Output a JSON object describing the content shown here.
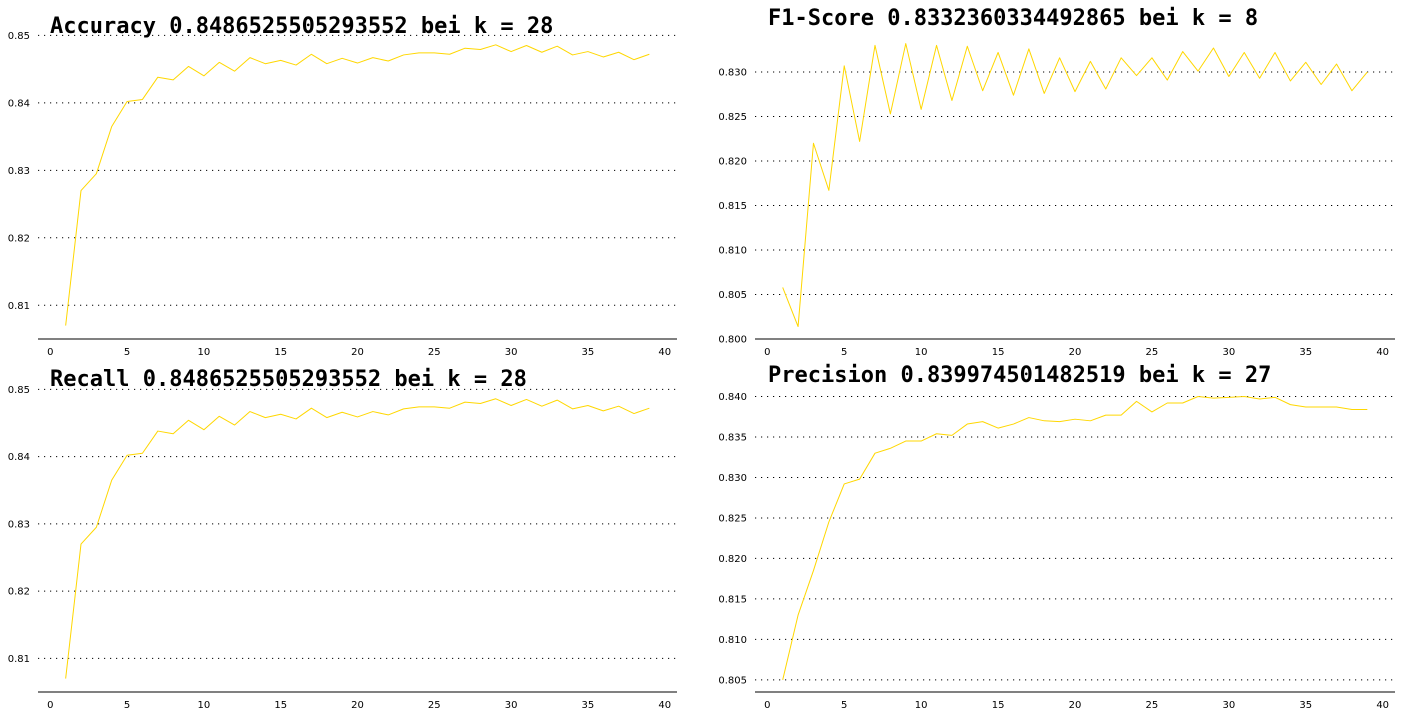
{
  "colors": {
    "line": "#ffd700",
    "text": "#000000",
    "grid": "#000000"
  },
  "chart_data": [
    {
      "type": "line",
      "title": "Accuracy 0.8486525505293552 bei k = 28",
      "grid": "y-dotted",
      "xlim": [
        -0.8,
        40.8
      ],
      "ylim": [
        0.805,
        0.8505
      ],
      "x_ticks": [
        0,
        5,
        10,
        15,
        20,
        25,
        30,
        35,
        40
      ],
      "y_ticks": [
        0.81,
        0.82,
        0.83,
        0.84,
        0.85
      ],
      "y_tick_labels": [
        "0.81",
        "0.82",
        "0.83",
        "0.84",
        "0.85"
      ],
      "series": [
        {
          "x": [
            1,
            2,
            3,
            4,
            5,
            6,
            7,
            8,
            9,
            10,
            11,
            12,
            13,
            14,
            15,
            16,
            17,
            18,
            19,
            20,
            21,
            22,
            23,
            24,
            25,
            26,
            27,
            28,
            29,
            30,
            31,
            32,
            33,
            34,
            35,
            36,
            37,
            38,
            39
          ],
          "values": [
            0.807,
            0.827,
            0.8295,
            0.8365,
            0.8402,
            0.8405,
            0.8438,
            0.8434,
            0.8454,
            0.844,
            0.846,
            0.8447,
            0.8467,
            0.8458,
            0.8463,
            0.8456,
            0.8472,
            0.8458,
            0.8466,
            0.8459,
            0.8467,
            0.8462,
            0.8471,
            0.8474,
            0.8474,
            0.8472,
            0.8481,
            0.8479,
            0.8486,
            0.8476,
            0.8485,
            0.8475,
            0.8484,
            0.8471,
            0.8476,
            0.8468,
            0.8475,
            0.8464,
            0.8472
          ]
        }
      ]
    },
    {
      "type": "line",
      "title": "F1-Score 0.8332360334492865 bei k = 8",
      "grid": "y-dotted",
      "xlim": [
        -0.8,
        40.8
      ],
      "ylim": [
        0.8,
        0.8345
      ],
      "x_ticks": [
        0,
        5,
        10,
        15,
        20,
        25,
        30,
        35,
        40
      ],
      "y_ticks": [
        0.8,
        0.805,
        0.81,
        0.815,
        0.82,
        0.825,
        0.83
      ],
      "y_tick_labels": [
        "0.800",
        "0.805",
        "0.810",
        "0.815",
        "0.820",
        "0.825",
        "0.830"
      ],
      "series": [
        {
          "x": [
            1,
            2,
            3,
            4,
            5,
            6,
            7,
            8,
            9,
            10,
            11,
            12,
            13,
            14,
            15,
            16,
            17,
            18,
            19,
            20,
            21,
            22,
            23,
            24,
            25,
            26,
            27,
            28,
            29,
            30,
            31,
            32,
            33,
            34,
            35,
            36,
            37,
            38,
            39
          ],
          "values": [
            0.8058,
            0.8014,
            0.822,
            0.8167,
            0.8307,
            0.8222,
            0.833,
            0.8253,
            0.8332,
            0.8258,
            0.833,
            0.8268,
            0.8329,
            0.8279,
            0.8322,
            0.8274,
            0.8326,
            0.8276,
            0.8316,
            0.8278,
            0.8312,
            0.8281,
            0.8316,
            0.8296,
            0.8316,
            0.8291,
            0.8323,
            0.8301,
            0.8327,
            0.8295,
            0.8322,
            0.8293,
            0.8322,
            0.829,
            0.8311,
            0.8286,
            0.8309,
            0.8279,
            0.83
          ]
        }
      ]
    },
    {
      "type": "line",
      "title": "Recall 0.8486525505293552 bei k = 28",
      "grid": "y-dotted",
      "xlim": [
        -0.8,
        40.8
      ],
      "ylim": [
        0.805,
        0.8505
      ],
      "x_ticks": [
        0,
        5,
        10,
        15,
        20,
        25,
        30,
        35,
        40
      ],
      "y_ticks": [
        0.81,
        0.82,
        0.83,
        0.84,
        0.85
      ],
      "y_tick_labels": [
        "0.81",
        "0.82",
        "0.83",
        "0.84",
        "0.85"
      ],
      "series": [
        {
          "x": [
            1,
            2,
            3,
            4,
            5,
            6,
            7,
            8,
            9,
            10,
            11,
            12,
            13,
            14,
            15,
            16,
            17,
            18,
            19,
            20,
            21,
            22,
            23,
            24,
            25,
            26,
            27,
            28,
            29,
            30,
            31,
            32,
            33,
            34,
            35,
            36,
            37,
            38,
            39
          ],
          "values": [
            0.807,
            0.827,
            0.8295,
            0.8365,
            0.8402,
            0.8405,
            0.8438,
            0.8434,
            0.8454,
            0.844,
            0.846,
            0.8447,
            0.8467,
            0.8458,
            0.8463,
            0.8456,
            0.8472,
            0.8458,
            0.8466,
            0.8459,
            0.8467,
            0.8462,
            0.8471,
            0.8474,
            0.8474,
            0.8472,
            0.8481,
            0.8479,
            0.8486,
            0.8476,
            0.8485,
            0.8475,
            0.8484,
            0.8471,
            0.8476,
            0.8468,
            0.8475,
            0.8464,
            0.8472
          ]
        }
      ]
    },
    {
      "type": "line",
      "title": "Precision 0.839974501482519 bei k = 27",
      "grid": "y-dotted",
      "xlim": [
        -0.8,
        40.8
      ],
      "ylim": [
        0.8035,
        0.8413
      ],
      "x_ticks": [
        0,
        5,
        10,
        15,
        20,
        25,
        30,
        35,
        40
      ],
      "y_ticks": [
        0.805,
        0.81,
        0.815,
        0.82,
        0.825,
        0.83,
        0.835,
        0.84
      ],
      "y_tick_labels": [
        "0.805",
        "0.810",
        "0.815",
        "0.820",
        "0.825",
        "0.830",
        "0.835",
        "0.840"
      ],
      "series": [
        {
          "x": [
            1,
            2,
            3,
            4,
            5,
            6,
            7,
            8,
            9,
            10,
            11,
            12,
            13,
            14,
            15,
            16,
            17,
            18,
            19,
            20,
            21,
            22,
            23,
            24,
            25,
            26,
            27,
            28,
            29,
            30,
            31,
            32,
            33,
            34,
            35,
            36,
            37,
            38,
            39
          ],
          "values": [
            0.805,
            0.813,
            0.8185,
            0.8245,
            0.8292,
            0.8298,
            0.833,
            0.8336,
            0.8345,
            0.8345,
            0.8354,
            0.8352,
            0.8366,
            0.8369,
            0.8361,
            0.8366,
            0.8374,
            0.837,
            0.8369,
            0.8372,
            0.837,
            0.8377,
            0.8377,
            0.8394,
            0.8381,
            0.8392,
            0.8392,
            0.84,
            0.8398,
            0.8399,
            0.84,
            0.8397,
            0.8399,
            0.839,
            0.8387,
            0.8387,
            0.8387,
            0.8384,
            0.8384
          ]
        }
      ]
    }
  ]
}
